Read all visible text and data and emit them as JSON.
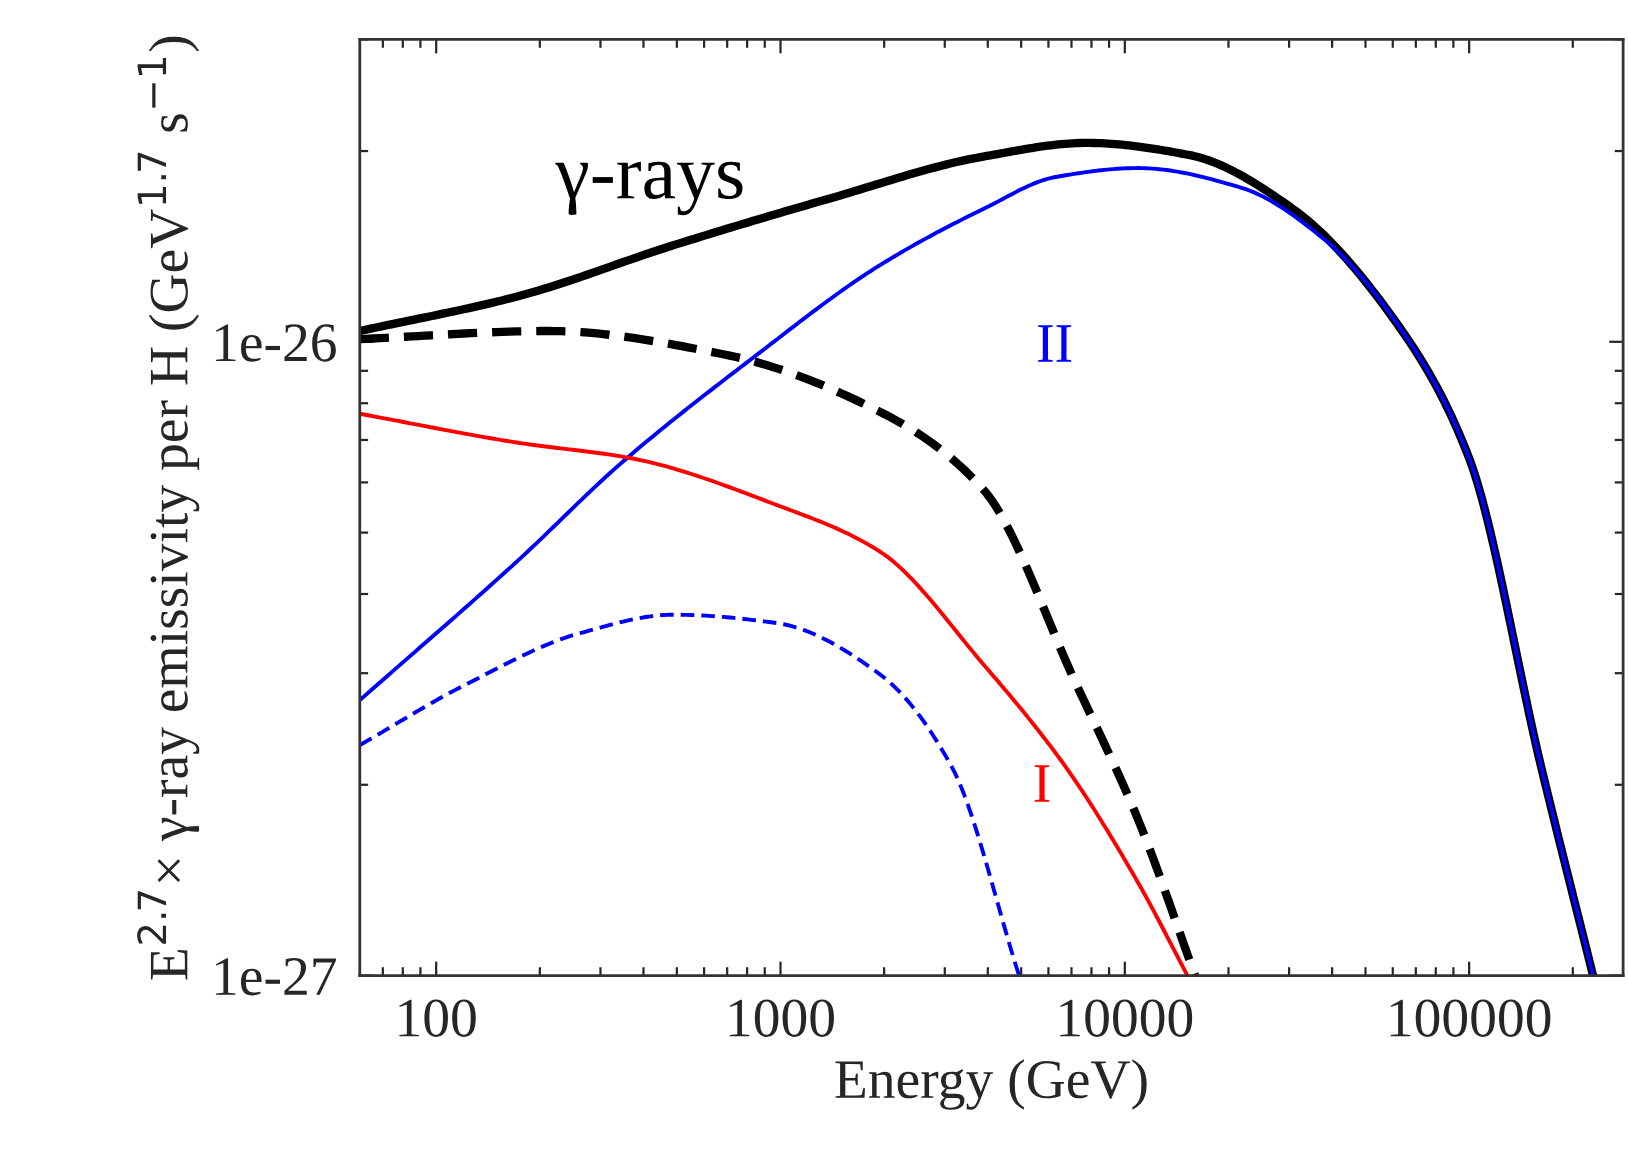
{
  "chart_data": {
    "type": "line",
    "xlabel": "Energy (GeV)",
    "ylabel": "E$^{2.7}$× γ-ray emissivity per H (GeV$^{1.7}$ s$^{−1}$)",
    "log": "xy",
    "xlim": [
      60,
      280000
    ],
    "ylim": [
      1e-27,
      3e-26
    ],
    "xticks": [
      {
        "value": 70,
        "label": null
      },
      {
        "value": 80,
        "label": null
      },
      {
        "value": 90,
        "label": null
      },
      100,
      {
        "value": 200,
        "label": null
      },
      {
        "value": 300,
        "label": null
      },
      {
        "value": 400,
        "label": null
      },
      {
        "value": 500,
        "label": null
      },
      {
        "value": 600,
        "label": null
      },
      {
        "value": 700,
        "label": null
      },
      {
        "value": 800,
        "label": null
      },
      {
        "value": 900,
        "label": null
      },
      1000,
      {
        "value": 2000,
        "label": null
      },
      {
        "value": 3000,
        "label": null
      },
      {
        "value": 4000,
        "label": null
      },
      {
        "value": 5000,
        "label": null
      },
      {
        "value": 6000,
        "label": null
      },
      {
        "value": 7000,
        "label": null
      },
      {
        "value": 8000,
        "label": null
      },
      {
        "value": 9000,
        "label": null
      },
      10000,
      {
        "value": 20000,
        "label": null
      },
      {
        "value": 30000,
        "label": null
      },
      {
        "value": 40000,
        "label": null
      },
      {
        "value": 50000,
        "label": null
      },
      {
        "value": 60000,
        "label": null
      },
      {
        "value": 70000,
        "label": null
      },
      {
        "value": 80000,
        "label": null
      },
      {
        "value": 90000,
        "label": null
      },
      100000,
      {
        "value": 200000,
        "label": null
      }
    ],
    "yticks": [
      {
        "value": 1e-27,
        "label": "1e-27"
      },
      {
        "value": 2e-27,
        "label": null
      },
      {
        "value": 3e-27,
        "label": null
      },
      {
        "value": 4e-27,
        "label": null
      },
      {
        "value": 5e-27,
        "label": null
      },
      {
        "value": 6e-27,
        "label": null
      },
      {
        "value": 7e-27,
        "label": null
      },
      {
        "value": 8e-27,
        "label": null
      },
      {
        "value": 9e-27,
        "label": null
      },
      {
        "value": 1e-26,
        "label": "1e-26"
      },
      {
        "value": 2e-26,
        "label": null
      },
      {
        "value": 3e-26,
        "label": null
      }
    ],
    "grid": false,
    "legend": false,
    "series": [
      {
        "color": "#000000",
        "line_style": "solid",
        "x": [
          60,
          173,
          488,
          1374,
          3880,
          7740,
          15450,
          30800,
          61600,
          100000,
          162000,
          229000
        ],
        "values": [
          1.04e-26,
          1.18e-26,
          1.42e-26,
          1.68e-26,
          1.96e-26,
          2.06e-26,
          1.97e-26,
          1.62e-26,
          1.07e-26,
          6.55e-27,
          2.13e-27,
          1e-27
        ]
      },
      {
        "color": "#000000",
        "line_style": "dashed",
        "x": [
          60,
          212,
          687,
          1940,
          3880,
          7230,
          10940,
          16000
        ],
        "values": [
          1.01e-26,
          1.04e-26,
          9.55e-27,
          7.76e-27,
          5.85e-27,
          2.88e-27,
          1.76e-27,
          1e-27
        ]
      },
      {
        "color": "#0000ff",
        "line_style": "solid",
        "x": [
          60,
          173,
          344,
          818,
          1940,
          3880,
          6300,
          10940,
          21800,
          38000,
          61600,
          100000,
          162000,
          229000
        ],
        "values": [
          2.72e-27,
          4.52e-27,
          6.43e-27,
          9.37e-27,
          1.32e-26,
          1.62e-26,
          1.82e-26,
          1.88e-26,
          1.75e-26,
          1.45e-26,
          1.07e-26,
          6.55e-27,
          2.13e-27,
          1e-27
        ]
      },
      {
        "color": "#ff0000",
        "line_style": "solid",
        "x": [
          60,
          173,
          369,
          973,
          1940,
          3880,
          6750,
          10940,
          15200
        ],
        "values": [
          7.7e-27,
          6.93e-27,
          6.55e-27,
          5.53e-27,
          4.67e-27,
          3.1e-27,
          2.13e-27,
          1.4e-27,
          1e-27
        ]
      },
      {
        "color": "#0000ff",
        "line_style": "dashed",
        "x": [
          60,
          122,
          262,
          488,
          973,
          1940,
          3150,
          4930
        ],
        "values": [
          2.31e-27,
          2.88e-27,
          3.47e-27,
          3.71e-27,
          3.6e-27,
          2.99e-27,
          2.13e-27,
          1e-27
        ]
      }
    ],
    "annotations": [
      "γ-rays",
      "II",
      "I"
    ]
  }
}
